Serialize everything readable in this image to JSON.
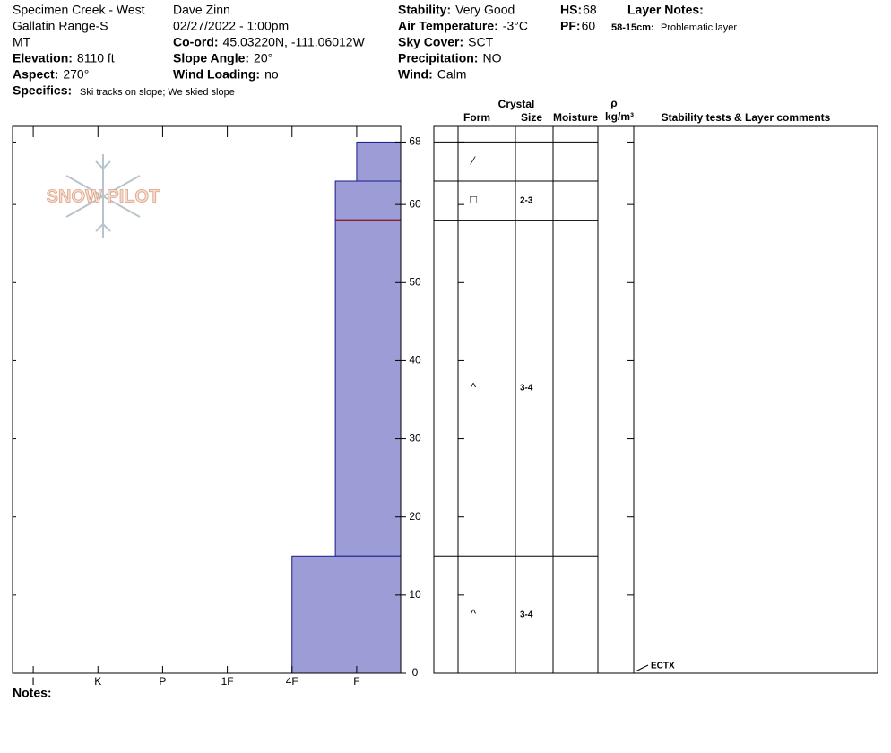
{
  "header": {
    "location": [
      "Specimen Creek - West",
      "Gallatin Range-S",
      "MT"
    ],
    "observer": "Dave Zinn",
    "datetime": "02/27/2022 - 1:00pm",
    "fields": [
      {
        "label": "Elevation:",
        "value": "8110 ft"
      },
      {
        "label": "Aspect:",
        "value": "270°"
      },
      {
        "label": "Co-ord:",
        "value": "45.03220N, -111.06012W"
      },
      {
        "label": "Slope Angle:",
        "value": "20°"
      },
      {
        "label": "Wind Loading:",
        "value": "no"
      },
      {
        "label": "Stability:",
        "value": "Very Good"
      },
      {
        "label": "Air Temperature:",
        "value": "-3°C"
      },
      {
        "label": "Sky Cover:",
        "value": "SCT"
      },
      {
        "label": "Precipitation:",
        "value": "NO"
      },
      {
        "label": "Wind:",
        "value": "Calm"
      },
      {
        "label": "HS:",
        "value": "68"
      },
      {
        "label": "PF:",
        "value": "60"
      }
    ],
    "specifics": {
      "label": "Specifics:",
      "value": "Ski tracks on slope; We skied slope"
    },
    "layer_notes": {
      "title": "Layer Notes:",
      "items": [
        {
          "range": "58-15cm:",
          "text": "Problematic layer"
        }
      ]
    }
  },
  "logo": "SNOW PILOT",
  "notes_label": "Notes:",
  "chart_data": {
    "type": "snow-profile",
    "ylim": [
      0,
      70
    ],
    "yticks": [
      0,
      10,
      20,
      30,
      40,
      50,
      60,
      68
    ],
    "xlim": [
      6.32,
      0.32
    ],
    "xticks": [
      {
        "value": 6,
        "label": "I"
      },
      {
        "value": 5,
        "label": "K"
      },
      {
        "value": 4,
        "label": "P"
      },
      {
        "value": 3,
        "label": "1F"
      },
      {
        "value": 2,
        "label": "4F"
      },
      {
        "value": 1,
        "label": "F"
      }
    ],
    "layer_color": "#9c9cd6",
    "critical_color": "#8b1a2a",
    "critical_height": 58,
    "layers": [
      {
        "top": 68,
        "bottom": 63,
        "hardness": 1,
        "form": "⁄"
      },
      {
        "top": 63,
        "bottom": 58,
        "hardness": 1.33,
        "form": "□",
        "size": "2-3"
      },
      {
        "top": 58,
        "bottom": 15,
        "hardness": 1.33,
        "form": "^",
        "size": "3-4"
      },
      {
        "top": 15,
        "bottom": 0,
        "hardness": 2,
        "form": "^",
        "size": "3-4"
      }
    ],
    "table_headers": {
      "crystal": "Crystal",
      "form": "Form",
      "size": "Size",
      "moisture": "Moisture",
      "rho": "ρ",
      "density": "kg/m³",
      "comments": "Stability tests & Layer comments"
    },
    "tests": [
      {
        "height": 0,
        "label": "ECTX"
      }
    ]
  }
}
